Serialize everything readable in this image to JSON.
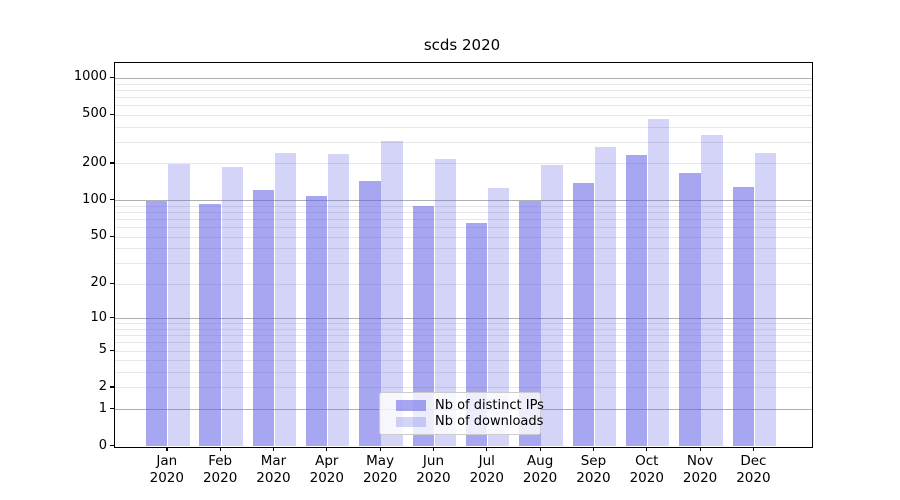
{
  "chart_data": {
    "type": "bar",
    "title": "scds 2020",
    "categories": [
      "Jan\n2020",
      "Feb\n2020",
      "Mar\n2020",
      "Apr\n2020",
      "May\n2020",
      "Jun\n2020",
      "Jul\n2020",
      "Aug\n2020",
      "Sep\n2020",
      "Oct\n2020",
      "Nov\n2020",
      "Dec\n2020"
    ],
    "series": [
      {
        "name": "Nb of distinct IPs",
        "color": "rgba(95,95,230,0.55)",
        "values": [
          100,
          93,
          123,
          109,
          144,
          90,
          65,
          99,
          140,
          236,
          170,
          129
        ]
      },
      {
        "name": "Nb of downloads",
        "color": "rgba(95,95,230,0.27)",
        "values": [
          199,
          189,
          246,
          240,
          308,
          219,
          126,
          198,
          275,
          468,
          347,
          246
        ]
      }
    ],
    "xlabel": "",
    "ylabel": "",
    "yscale": "log1p",
    "ylim": [
      0,
      1350
    ],
    "yticks": [
      0,
      1,
      2,
      5,
      10,
      20,
      50,
      100,
      200,
      500,
      1000
    ],
    "yticks_minor": [
      3,
      4,
      6,
      7,
      8,
      9,
      30,
      40,
      60,
      70,
      80,
      90,
      300,
      400,
      600,
      700,
      800,
      900
    ],
    "grid": true,
    "legend_position": "lower center"
  },
  "colors": {
    "grid_major": "#b0b0b0",
    "grid_minor": "#e7e7e7",
    "spine": "#000000",
    "text": "#000000",
    "legend_border": "#cccccc",
    "legend_background": "rgba(255,255,255,0.8)"
  }
}
